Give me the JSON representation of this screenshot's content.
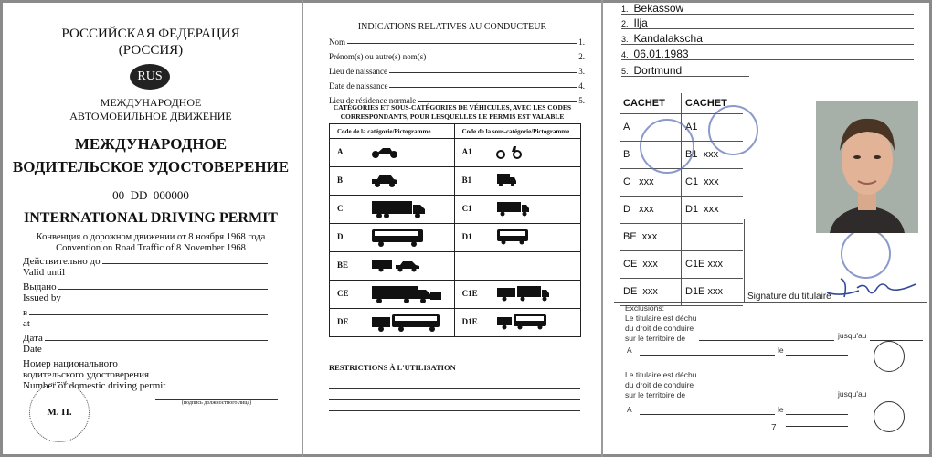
{
  "left": {
    "title_ru_1": "РОССИЙСКАЯ ФЕДЕРАЦИЯ",
    "title_ru_2": "(РОССИЯ)",
    "country_code": "RUS",
    "sub_ru_1": "МЕЖДУНАРОДНОЕ",
    "sub_ru_2": "АВТОМОБИЛЬНОЕ ДВИЖЕНИЕ",
    "heading_ru_1": "МЕЖДУНАРОДНОЕ",
    "heading_ru_2": "ВОДИТЕЛЬСКОЕ УДОСТОВЕРЕНИЕ",
    "serial": "00  DD  000000",
    "heading_en": "INTERNATIONAL DRIVING PERMIT",
    "convention_ru": "Конвенция о дорожном движении от 8 ноября 1968 года",
    "convention_en": "Convention on Road Traffic of 8 November 1968",
    "fields": [
      {
        "ru": "Действительно до",
        "en": "Valid until"
      },
      {
        "ru": "Выдано",
        "en": "Issued by"
      },
      {
        "ru": "в",
        "en": "at"
      },
      {
        "ru": "Дата",
        "en": "Date"
      }
    ],
    "number_ru_1": "Номер национального",
    "number_ru_2": "водительского удостоверения",
    "number_en": "Number of domestic driving permit",
    "seal": "М. П.",
    "signature_caption": "(подпись должностного лица)"
  },
  "middle": {
    "title": "INDICATIONS RELATIVES AU CONDUCTEUR",
    "fields": [
      {
        "label": "Nom",
        "num": "1."
      },
      {
        "label": "Prénom(s) ou autre(s) nom(s)",
        "num": "2."
      },
      {
        "label": "Lieu de naissance",
        "num": "3."
      },
      {
        "label": "Date de naissance",
        "num": "4."
      },
      {
        "label": "Lieu de résidence normale",
        "num": "5."
      }
    ],
    "categories_title_1": "CATÉGORIES ET SOUS-CATÉGORIES DE VÉHICULES, AVEC LES CODES",
    "categories_title_2": "CORRESPONDANTS, POUR LESQUELLES LE PERMIS EST VALABLE",
    "col1": "Code de la catégorie/Pictogramme",
    "col2": "Code de la sous-catégorie/Pictogramme",
    "rows": [
      {
        "cat": "A",
        "cat_icon": "motorcycle-icon",
        "sub": "A1",
        "sub_icon": "moped-icon"
      },
      {
        "cat": "B",
        "cat_icon": "car-icon",
        "sub": "B1",
        "sub_icon": "small-van-icon"
      },
      {
        "cat": "C",
        "cat_icon": "truck-icon",
        "sub": "C1",
        "sub_icon": "light-truck-icon"
      },
      {
        "cat": "D",
        "cat_icon": "bus-icon",
        "sub": "D1",
        "sub_icon": "minibus-icon"
      },
      {
        "cat": "BE",
        "cat_icon": "car-trailer-icon",
        "sub": "",
        "sub_icon": ""
      },
      {
        "cat": "CE",
        "cat_icon": "truck-trailer-icon",
        "sub": "C1E",
        "sub_icon": "light-truck-trailer-icon"
      },
      {
        "cat": "DE",
        "cat_icon": "bus-trailer-icon",
        "sub": "D1E",
        "sub_icon": "minibus-trailer-icon"
      }
    ],
    "restrictions": "RESTRICTIONS À L'UTILISATION"
  },
  "right": {
    "fields": [
      {
        "num": "1.",
        "value": "Bekassow"
      },
      {
        "num": "2.",
        "value": "Ilja"
      },
      {
        "num": "3.",
        "value": "Kandalakscha"
      },
      {
        "num": "4.",
        "value": "06.01.1983"
      },
      {
        "num": "5.",
        "value": "Dortmund"
      }
    ],
    "cachet": "CACHET",
    "rows": [
      {
        "a": "A",
        "b": "A1"
      },
      {
        "a": "B",
        "b": "B1  xxx"
      },
      {
        "a": "C   xxx",
        "b": "C1  xxx"
      },
      {
        "a": "D   xxx",
        "b": "D1  xxx"
      },
      {
        "a": "BE  xxx",
        "b": ""
      },
      {
        "a": "CE  xxx",
        "b": "C1E xxx"
      },
      {
        "a": "DE  xxx",
        "b": "D1E xxx"
      }
    ],
    "signature_label": "Signature du titulaire",
    "exclusions": "Exclusions:",
    "decheance_1": "Le titulaire est déchu",
    "decheance_2": "du droit de conduire",
    "decheance_3": "sur le territoire de",
    "jusquau": "jusqu'au",
    "a_label": "A",
    "le_label": "le",
    "page_number": "7",
    "stamp_color": "#5a6fb5"
  }
}
